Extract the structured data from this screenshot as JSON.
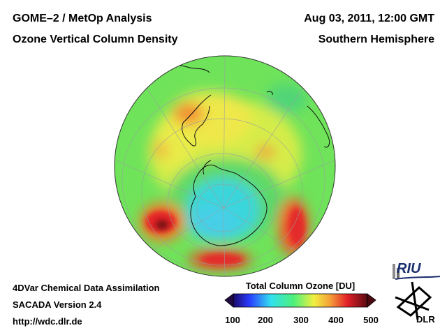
{
  "header": {
    "title_left_1": "GOME–2 / MetOp Analysis",
    "title_left_2": "Ozone Vertical Column Density",
    "title_right_1": "Aug 03, 2011, 12:00 GMT",
    "title_right_2": "Southern Hemisphere"
  },
  "footer": {
    "line1": "4DVar Chemical Data Assimilation",
    "line2": "SACADA Version 2.4",
    "line3": "http://wdc.dlr.de"
  },
  "colorbar": {
    "title": "Total Column Ozone [DU]",
    "ticks": [
      "100",
      "200",
      "300",
      "400",
      "500"
    ],
    "range": [
      100,
      500
    ]
  },
  "logos": {
    "riu": "RIU",
    "dlr": "DLR"
  },
  "map": {
    "projection": "orthographic-south-pole",
    "colors": {
      "background": "#7be05a",
      "ozone_low": "#3ad6e0",
      "ozone_mid": "#e6f03a",
      "ozone_high": "#e4202a",
      "ozone_max": "#5a0a10"
    }
  }
}
